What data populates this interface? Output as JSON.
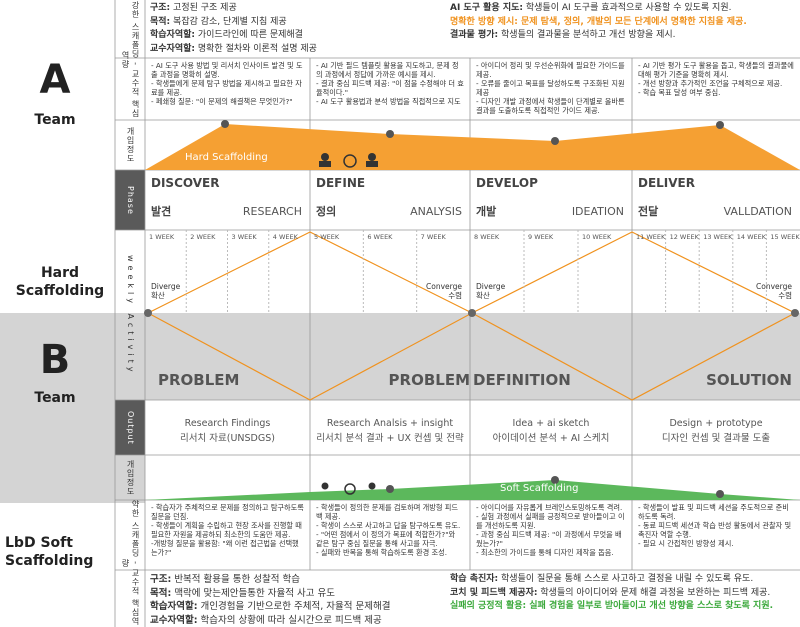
{
  "side": {
    "a_letter": "A",
    "a_team": "Team",
    "hard_scaffolding": "Hard Scaffolding",
    "b_letter": "B",
    "b_team": "Team",
    "soft_scaffolding": "LbD Soft Scaffolding"
  },
  "row_labels": {
    "strong": "강한 스캐폴딩 - 교수적 핵심역량",
    "intervention_top": "개입정도",
    "phase": "Phase",
    "weekly": "weekly Activity",
    "output": "Output",
    "intervention_bottom": "개입정도",
    "weak": "약한 스캐폴딩 - 교수적 핵심역량"
  },
  "top_block": {
    "left": [
      {
        "label": "구조:",
        "text": "고정된 구조 제공"
      },
      {
        "label": "목적:",
        "text": "복잡감 감소, 단계별 지침 제공"
      },
      {
        "label": "학습자역할:",
        "text": "가이드라인에 따른 문제해결"
      },
      {
        "label": "교수자역할:",
        "text": "명확한 절차와 이론적 설명 제공"
      }
    ],
    "right": [
      {
        "label": "AI 도구 활용 지도:",
        "text": "학생들이 AI 도구를 효과적으로 사용할 수 있도록 지원."
      },
      {
        "label": "명확한 방향 제시:",
        "text": "문제 탐색, 정의, 개발의 모든 단계에서 명확한 지침을 제공.",
        "color": "#f0921e"
      },
      {
        "label": "결과물 평가:",
        "text": "학생들의 결과물을 분석하고 개선 방향을 제시."
      }
    ]
  },
  "top_columns": [
    [
      "- AI 도구 사용 방법 및 리서치 인사이트 발견 및 도출 과정을 명확히 설명.",
      "- 학생들에게 문제 탐구 방법을 제시하고 필요한 자료를 제공.",
      "- 페쇄형 질문: \"이 문제의 해결책은 무엇인가?\""
    ],
    [
      "- AI 기반 필드 템플릿 활용을 지도하고, 문제 정의 과정에서 정답에 가까운 예시를 제시.",
      "- 결과 중심 피드백 제공: \"이 점을 수정해야 더 효율적이다.\"",
      "- AI 도구 활용법과 분석 방법을 직접적으로 지도"
    ],
    [
      "- 아이디어 정리 및 우선순위화에 필요한 가이드를 제공.",
      "- 오류를 줄이고 목표를 달성하도록 구조화된 지원 제공",
      "- 디자인 개발 과정에서 학생들이 단계별로 올바른 결과를 도출하도록 직접적인 가이드 제공."
    ],
    [
      "- AI 기반 평가 도구 활용을 돕고, 학생들의 결과물에 대해 평가 기준을 명확히 제시.",
      "- 개선 방향과 추가적인 조언을 구체적으로 제공.",
      "- 학습 목표 달성 여부 중심."
    ]
  ],
  "hard_curve_label": "Hard Scaffolding",
  "phases": [
    {
      "en": "DISCOVER",
      "ko": "발견",
      "sub": "RESEARCH",
      "weeks": [
        "1 WEEK",
        "2 WEEK",
        "3 WEEK",
        "4 WEEK"
      ]
    },
    {
      "en": "DEFINE",
      "ko": "정의",
      "sub": "ANALYSIS",
      "weeks": [
        "5 WEEK",
        "6 WEEK",
        "7 WEEK"
      ]
    },
    {
      "en": "DEVELOP",
      "ko": "개발",
      "sub": "IDEATION",
      "weeks": [
        "8 WEEK",
        "9 WEEK",
        "10 WEEK"
      ]
    },
    {
      "en": "DELIVER",
      "ko": "전달",
      "sub": "VALLDATION",
      "weeks": [
        "11 WEEK",
        "12 WEEK",
        "13 WEEK",
        "14 WEEK",
        "15 WEEK"
      ]
    }
  ],
  "flow_labels": [
    {
      "en": "Diverge",
      "ko": "확산"
    },
    {
      "en": "Converge",
      "ko": "수렴"
    },
    {
      "en": "Diverge",
      "ko": "확산"
    },
    {
      "en": "Converge",
      "ko": "수렴"
    }
  ],
  "activities": [
    "PROBLEM",
    "PROBLEM",
    "DEFINITION",
    "SOLUTION"
  ],
  "outputs": [
    {
      "en": "Research Findings",
      "ko": "리서치 자료(UNSDGS)"
    },
    {
      "en": "Research Analsis + insight",
      "ko": "리서치 분석 결과 + UX 컨셉 및 전략"
    },
    {
      "en": "Idea + ai sketch",
      "ko": "아이데이션 분석 + AI 스케치"
    },
    {
      "en": "Design + prototype",
      "ko": "디자인 컨셉 및 결과물 도출"
    }
  ],
  "soft_curve_label": "Soft Scaffolding",
  "bottom_columns": [
    [
      "- 학습자가 주체적으로 문제를 정의하고 탐구하도록 질문을 던짐.",
      "- 학생들이 계획을 수립하고 현장 조사를 진행할 때 필요한 자원을 제공하되 최소한의 도움만 제공.",
      "-개방형 질문을 활용함: \"왜 이런 접근법을 선택했는가?\""
    ],
    [
      "- 학생들이 정의한 문제를 검토하며 개방형 피드백 제공.",
      "- 학생이 스스로 사고하고 답을 탐구하도록 유도.",
      "- \"어떤 점에서 이 정의가 목표에 적합한가?\"와 같은 탐구 중심 질문을 통해 사고를 자극.",
      "- 실패와 반복을 통해 학습하도록 환경 조성."
    ],
    [
      "- 아이디어를 자유롭게 브레인스토밍하도록 격려.",
      "- 실험 과정에서 실패를 긍정적으로 받아들이고 이를 개선하도록 지원.",
      "- 과정 중심 피드백 제공: \"이 과정에서 무엇을 배웠는가?\"",
      "- 최소한의 가이드를 통해 디자인 제작을 돕음."
    ],
    [
      "- 학생들이 발표 및 피드백 세션을 주도적으로 준비하도록 독려.",
      "- 동료 피드백 세션과 학습 반성 활동에서 관찰자 및 촉진자 역할 수행.",
      "- 필요 시 간접적인 방향성 제시."
    ]
  ],
  "bottom_block": {
    "left": [
      {
        "label": "구조:",
        "text": "반복적 활용을 통한 성찰적 학습"
      },
      {
        "label": "목적:",
        "text": "맥락에 맞는제안들통한 자율적 사고 유도"
      },
      {
        "label": "학습자역할:",
        "text": "개인경험을 기반으로한 주체적, 자율적 문제해결"
      },
      {
        "label": "교수자역할:",
        "text": "학습자의 상황에 따라 실시간으로 피드백 제공"
      }
    ],
    "right": [
      {
        "label": "학습 촉진자:",
        "text": "학생들이 질문을 통해 스스로 사고하고 결정을 내릴 수 있도록 유도."
      },
      {
        "label": "코치 및 피드백 제공자:",
        "text": "학생들의 아이디어와 문제 해결 과정을 보완하는 피드백 제공."
      },
      {
        "label": "실패의 긍정적 활용:",
        "text": "실패 경험을 일부로 받아들이고 개선 방향을 스스로 찾도록 지원.",
        "color": "#3aa83a"
      }
    ]
  }
}
